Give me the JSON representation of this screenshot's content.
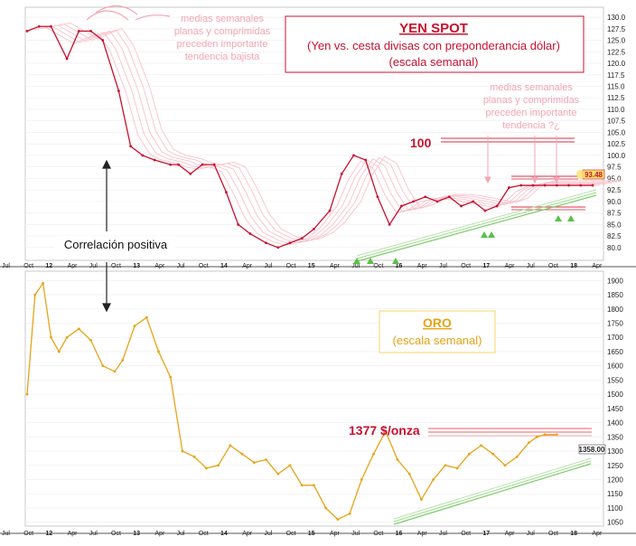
{
  "chart_data": [
    {
      "type": "line",
      "title": "YEN SPOT",
      "subtitle_1": "(Yen vs. cesta divisas con preponderancia dólar)",
      "subtitle_2": "(escala semanal)",
      "ylim": [
        78,
        131
      ],
      "yticks": [
        "130.0",
        "127.5",
        "125.0",
        "122.5",
        "120.0",
        "117.5",
        "115.0",
        "112.5",
        "110.0",
        "107.5",
        "105.0",
        "102.5",
        "100.0",
        "97.5",
        "95.0",
        "92.5",
        "90.0",
        "87.5",
        "85.0",
        "82.5",
        "80.0"
      ],
      "last_value": "93.48",
      "annotation_100": "100",
      "note_left": [
        "medias semanales",
        "planas y comprimidas",
        "preceden importante",
        "tendencia bajista"
      ],
      "note_right": [
        "medias semanales",
        "planas y comprimidas",
        "preceden importante",
        "tendencia ?¿"
      ],
      "series": [
        {
          "name": "Yen spot",
          "color": "#c8102e",
          "t": [
            0,
            3,
            6,
            10,
            13,
            16,
            19,
            23,
            26,
            29,
            32,
            36,
            38,
            41,
            44,
            47,
            50,
            53,
            56,
            60,
            63,
            66,
            69,
            72,
            76,
            79,
            82,
            85,
            88,
            91,
            94,
            97,
            100,
            103,
            106,
            109,
            112,
            115,
            118,
            121,
            124,
            127,
            130,
            133,
            136,
            139,
            142
          ],
          "v": [
            127,
            128,
            128,
            121,
            127,
            127,
            125,
            114,
            102,
            100,
            99,
            98,
            98,
            96,
            98,
            98,
            92,
            85,
            83,
            81,
            80,
            81,
            82,
            84,
            88,
            96,
            100,
            99,
            91,
            85,
            89,
            90,
            91,
            90,
            91,
            89,
            90,
            88,
            89,
            93,
            93.5,
            93.5,
            93.5,
            93.5,
            93.5,
            93.5,
            93.5
          ]
        }
      ]
    },
    {
      "type": "line",
      "title": "ORO",
      "subtitle": "(escala semanal)",
      "ylim": [
        1030,
        1920
      ],
      "yticks": [
        "1900",
        "1850",
        "1800",
        "1750",
        "1700",
        "1650",
        "1600",
        "1550",
        "1500",
        "1450",
        "1400",
        "1350",
        "1300",
        "1250",
        "1200",
        "1150",
        "1100",
        "1050"
      ],
      "last_value": "1358.00",
      "annotation_resistance": "1377 $/onza",
      "series": [
        {
          "name": "Oro",
          "color": "#e8a317",
          "t": [
            0,
            2,
            4,
            6,
            8,
            10,
            13,
            16,
            19,
            22,
            24,
            27,
            30,
            33,
            36,
            39,
            42,
            45,
            48,
            51,
            54,
            57,
            60,
            63,
            66,
            69,
            72,
            75,
            78,
            81,
            84,
            87,
            90,
            93,
            96,
            99,
            102,
            105,
            108,
            111,
            114,
            117,
            120,
            123,
            126,
            128,
            130,
            133
          ],
          "v": [
            1500,
            1850,
            1890,
            1700,
            1650,
            1700,
            1730,
            1690,
            1600,
            1580,
            1620,
            1740,
            1770,
            1650,
            1560,
            1300,
            1280,
            1240,
            1250,
            1320,
            1290,
            1260,
            1270,
            1220,
            1250,
            1180,
            1180,
            1100,
            1060,
            1080,
            1200,
            1290,
            1370,
            1270,
            1220,
            1130,
            1200,
            1250,
            1240,
            1290,
            1320,
            1290,
            1250,
            1280,
            1330,
            1350,
            1358,
            1358
          ]
        }
      ]
    }
  ],
  "shared": {
    "x_labels": [
      "Jul",
      "Oct",
      "12",
      "Apr",
      "Jul",
      "Oct",
      "13",
      "Apr",
      "Jul",
      "Oct",
      "14",
      "Apr",
      "Jul",
      "Oct",
      "15",
      "Apr",
      "Jul",
      "Oct",
      "16",
      "Apr",
      "Jul",
      "Oct",
      "17",
      "Apr",
      "Jul",
      "Oct",
      "18",
      "Apr"
    ],
    "x_bold_labels": [
      "12",
      "13",
      "14",
      "15",
      "16",
      "17",
      "18"
    ],
    "correlation_label": "Correlación positiva"
  },
  "colors": {
    "yen": "#c8102e",
    "gold": "#e8a317",
    "trend_green": "#7ccc6a",
    "title_box_red": "#c8102e",
    "note_pink": "#f2a6b4"
  }
}
